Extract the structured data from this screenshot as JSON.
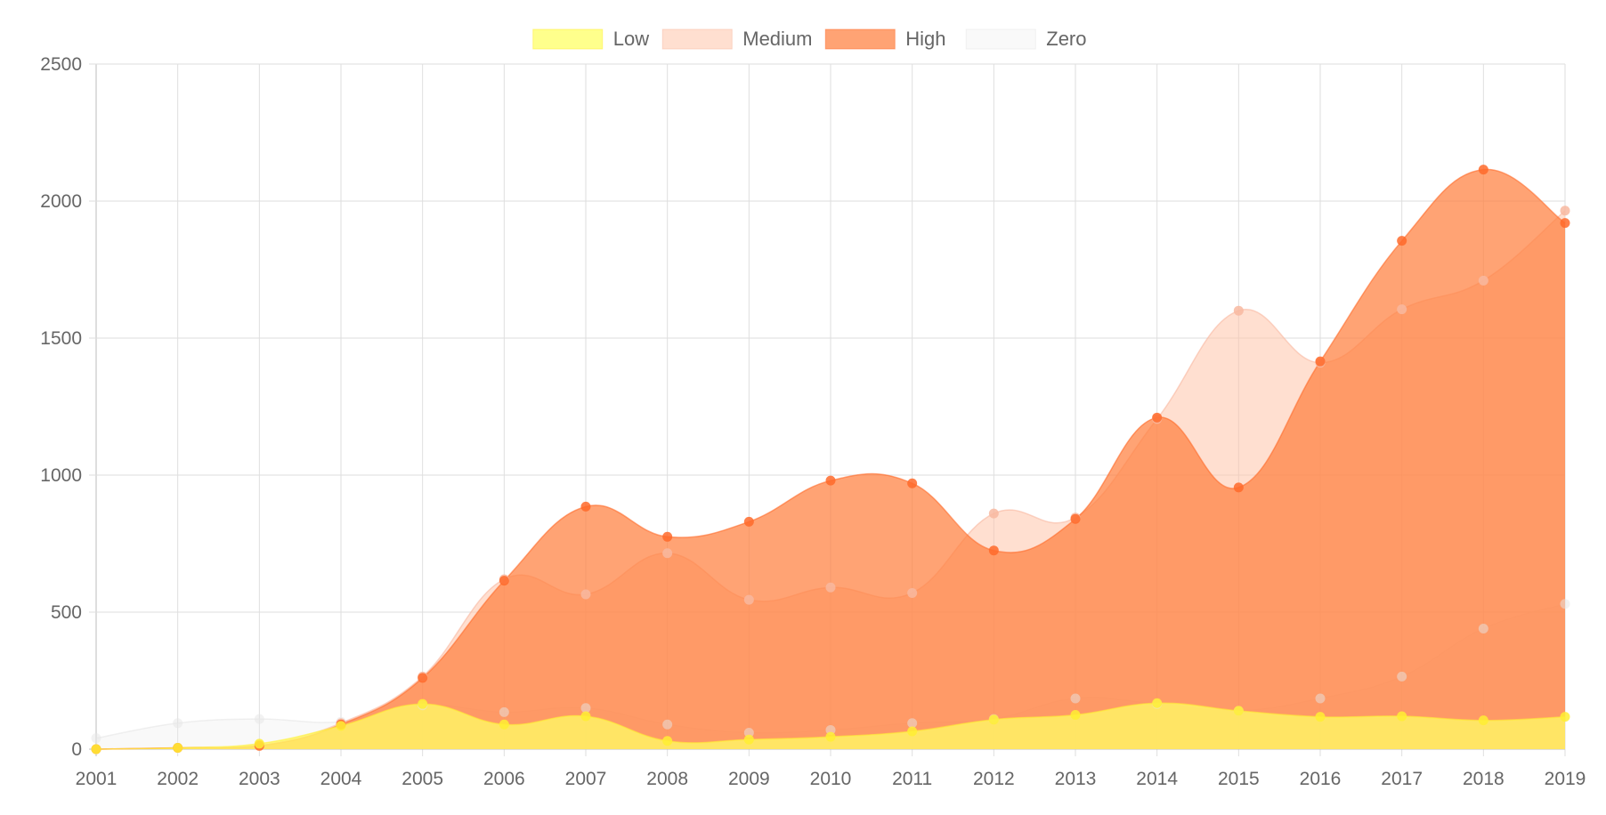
{
  "chart_data": {
    "type": "area",
    "categories": [
      "2001",
      "2002",
      "2003",
      "2004",
      "2005",
      "2006",
      "2007",
      "2008",
      "2009",
      "2010",
      "2011",
      "2012",
      "2013",
      "2014",
      "2015",
      "2016",
      "2017",
      "2018",
      "2019"
    ],
    "ylim": [
      0,
      2500
    ],
    "yticks": [
      "0",
      "500",
      "1000",
      "1500",
      "2000",
      "2500"
    ],
    "grid": true,
    "legend_position": "top",
    "series": [
      {
        "name": "Low",
        "fill": "#ffff66",
        "fill_opacity": 0.75,
        "point_color": "#ffee33",
        "values": [
          0,
          5,
          20,
          85,
          165,
          90,
          120,
          30,
          35,
          45,
          65,
          108,
          125,
          168,
          140,
          118,
          120,
          105,
          118
        ]
      },
      {
        "name": "Medium",
        "fill": "#ffc4aa",
        "fill_opacity": 0.55,
        "point_color": "#f8b8a0",
        "values": [
          0,
          5,
          15,
          95,
          265,
          620,
          565,
          715,
          545,
          590,
          570,
          860,
          845,
          1205,
          1600,
          1410,
          1605,
          1710,
          1965
        ]
      },
      {
        "name": "High",
        "fill": "#ff7f3f",
        "fill_opacity": 0.72,
        "point_color": "#ff6a2a",
        "values": [
          0,
          5,
          12,
          90,
          260,
          615,
          885,
          775,
          830,
          980,
          970,
          725,
          840,
          1210,
          955,
          1415,
          1855,
          2115,
          1920
        ]
      },
      {
        "name": "Zero",
        "fill": "#efefef",
        "fill_opacity": 0.35,
        "point_color": "#e6e6e6",
        "values": [
          40,
          95,
          110,
          100,
          160,
          135,
          150,
          90,
          60,
          70,
          95,
          110,
          185,
          165,
          140,
          185,
          265,
          440,
          530
        ]
      }
    ]
  }
}
